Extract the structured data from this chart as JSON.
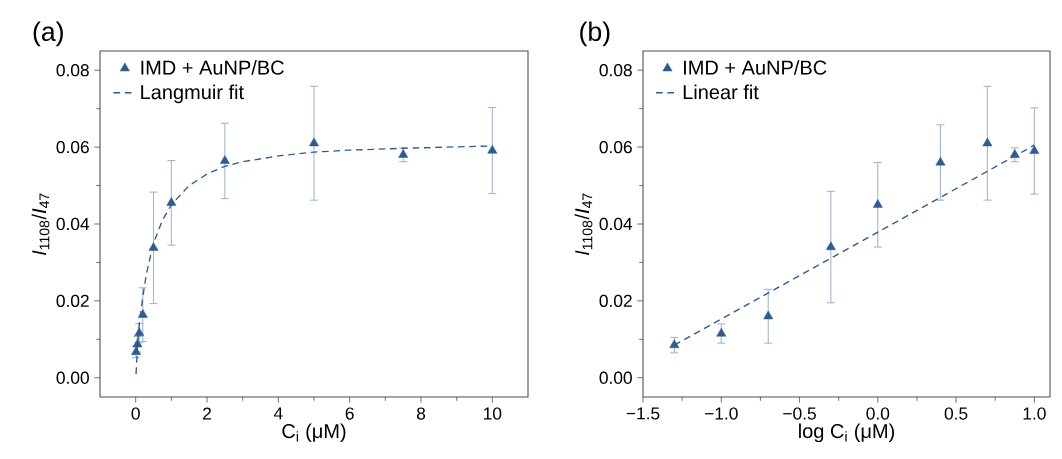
{
  "chart_data": [
    {
      "type": "scatter",
      "title": "(a)",
      "xlabel": "C$_{i}$ (μM)",
      "ylabel": "*I*$_{1108}$/*I*$_{47}$",
      "x": [
        0.01,
        0.05,
        0.1,
        0.2,
        0.5,
        1,
        2.5,
        5,
        7.5,
        10
      ],
      "series": [
        {
          "name": "IMD + AuNP/BC",
          "color": "#2f5b8f",
          "marker": "triangle",
          "values": [
            0.0067,
            0.0087,
            0.0116,
            0.0164,
            0.0338,
            0.0455,
            0.0564,
            0.061,
            0.058,
            0.0591
          ],
          "errors": [
            0.0015,
            0.002,
            0.0025,
            0.007,
            0.0145,
            0.011,
            0.0098,
            0.0148,
            0.0018,
            0.0112
          ]
        },
        {
          "name": "Langmuir fit",
          "type": "line",
          "color": "#2f5b8f",
          "line_style": "dashed",
          "marker": "none",
          "x": [
            0.01,
            0.05,
            0.1,
            0.2,
            0.3,
            0.5,
            0.75,
            1,
            1.5,
            2,
            2.5,
            3,
            4,
            5,
            6,
            7.5,
            10
          ],
          "values": [
            0.001,
            0.008,
            0.014,
            0.021,
            0.027,
            0.035,
            0.041,
            0.045,
            0.05,
            0.053,
            0.055,
            0.0562,
            0.0577,
            0.0587,
            0.0592,
            0.0597,
            0.0603
          ]
        }
      ],
      "xlim": [
        -1,
        11
      ],
      "ylim": [
        -0.005,
        0.085
      ],
      "xticks": [
        0,
        2,
        4,
        6,
        8,
        10
      ],
      "yticks": [
        {
          "value": 0,
          "label": "0.00"
        },
        {
          "value": 0.02,
          "label": "0.02"
        },
        {
          "value": 0.04,
          "label": "0.04"
        },
        {
          "value": 0.06,
          "label": "0.06"
        },
        {
          "value": 0.08,
          "label": "0.08"
        }
      ],
      "legend": "top left",
      "grid": false
    },
    {
      "type": "scatter",
      "title": "(b)",
      "xlabel": "log C$_{i}$ (μM)",
      "ylabel": "*I*$_{1108}$/*I*$_{47}$",
      "x": [
        -1.3,
        -1.0,
        -0.7,
        -0.3,
        0,
        0.4,
        0.7,
        0.875,
        1.0
      ],
      "series": [
        {
          "name": "IMD + AuNP/BC",
          "color": "#2f5b8f",
          "marker": "triangle",
          "values": [
            0.0085,
            0.0115,
            0.016,
            0.034,
            0.045,
            0.056,
            0.061,
            0.058,
            0.059
          ],
          "errors": [
            0.002,
            0.0025,
            0.007,
            0.0145,
            0.011,
            0.0098,
            0.0148,
            0.0018,
            0.0112
          ]
        },
        {
          "name": "Linear fit",
          "type": "line",
          "color": "#2f5b8f",
          "line_style": "dashed",
          "marker": "none",
          "x": [
            -1.3,
            1.0
          ],
          "values": [
            0.0085,
            0.0605
          ]
        }
      ],
      "xlim": [
        -1.5,
        1.1
      ],
      "ylim": [
        -0.005,
        0.085
      ],
      "xticks": [
        {
          "value": -1.5,
          "label": "−1.5"
        },
        {
          "value": -1.0,
          "label": "−1.0"
        },
        {
          "value": -0.5,
          "label": "−0.5"
        },
        {
          "value": 0.0,
          "label": "0.0"
        },
        {
          "value": 0.5,
          "label": "0.5"
        },
        {
          "value": 1.0,
          "label": "1.0"
        }
      ],
      "yticks": [
        {
          "value": 0,
          "label": "0.00"
        },
        {
          "value": 0.02,
          "label": "0.02"
        },
        {
          "value": 0.04,
          "label": "0.04"
        },
        {
          "value": 0.06,
          "label": "0.06"
        },
        {
          "value": 0.08,
          "label": "0.08"
        }
      ],
      "legend": "top left",
      "grid": false
    }
  ]
}
